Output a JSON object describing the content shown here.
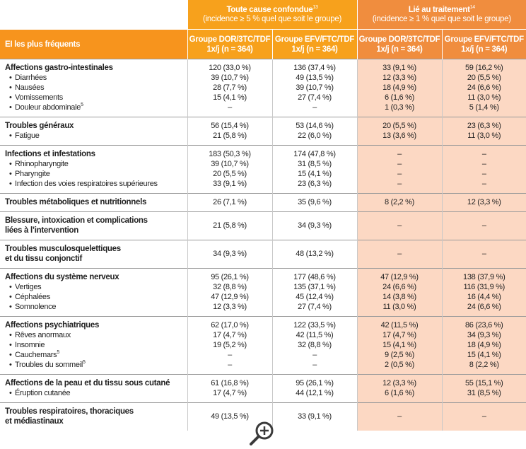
{
  "header": {
    "groups": [
      {
        "title": "Toute cause confondue",
        "sup": "13",
        "subtitle": "(incidence ≥ 5 % quel que soit le groupe)"
      },
      {
        "title": "Lié au traitement",
        "sup": "14",
        "subtitle": "(incidence ≥ 1 % quel que soit le groupe)"
      }
    ],
    "row_label": "EI les plus fréquents",
    "columns": [
      {
        "line1": "Groupe DOR/3TC/TDF",
        "line2": "1x/j (n = 364)"
      },
      {
        "line1": "Groupe EFV/FTC/TDF",
        "line2": "1x/j (n = 364)"
      },
      {
        "line1": "Groupe DOR/3TC/TDF",
        "line2": "1x/j (n = 364)"
      },
      {
        "line1": "Groupe EFV/FTC/TDF",
        "line2": "1x/j (n = 364)"
      }
    ]
  },
  "table": {
    "groups": [
      {
        "lines": [
          "Affections gastro-intestinales"
        ],
        "values": [
          "120 (33,0 %)",
          "136 (37,4 %)",
          "33 (9,1 %)",
          "59 (16,2 %)"
        ],
        "items": [
          {
            "name": "Diarrhées",
            "values": [
              "39 (10,7 %)",
              "49 (13,5 %)",
              "12 (3,3 %)",
              "20 (5,5 %)"
            ]
          },
          {
            "name": "Nausées",
            "values": [
              "28 (7,7 %)",
              "39 (10,7 %)",
              "18 (4,9 %)",
              "24 (6,6 %)"
            ]
          },
          {
            "name": "Vomissements",
            "values": [
              "15 (4,1 %)",
              "27 (7,4 %)",
              "6 (1,6 %)",
              "11 (3,0 %)"
            ]
          },
          {
            "name": "Douleur abdominale",
            "sup": "5",
            "values": [
              "–",
              "–",
              "1 (0,3 %)",
              "5 (1,4 %)"
            ]
          }
        ]
      },
      {
        "lines": [
          "Troubles généraux"
        ],
        "values": [
          "56 (15,4 %)",
          "53 (14,6 %)",
          "20 (5,5 %)",
          "23 (6,3 %)"
        ],
        "items": [
          {
            "name": "Fatigue",
            "values": [
              "21 (5,8 %)",
              "22 (6,0 %)",
              "13 (3,6 %)",
              "11 (3,0 %)"
            ]
          }
        ]
      },
      {
        "lines": [
          "Infections et infestations"
        ],
        "values": [
          "183 (50,3 %)",
          "174 (47,8 %)",
          "–",
          "–"
        ],
        "items": [
          {
            "name": "Rhinopharyngite",
            "values": [
              "39 (10,7 %)",
              "31 (8,5 %)",
              "–",
              "–"
            ]
          },
          {
            "name": "Pharyngite",
            "values": [
              "20 (5,5 %)",
              "15 (4,1 %)",
              "–",
              "–"
            ]
          },
          {
            "name": "Infection des voies respiratoires supérieures",
            "values": [
              "33 (9,1 %)",
              "23 (6,3 %)",
              "–",
              "–"
            ]
          }
        ]
      },
      {
        "lines": [
          "Troubles métaboliques et nutritionnels"
        ],
        "values": [
          "26 (7,1 %)",
          "35 (9,6 %)",
          "8 (2,2 %)",
          "12 (3,3 %)"
        ],
        "items": []
      },
      {
        "lines": [
          "Blessure, intoxication et complications",
          "liées à l’intervention"
        ],
        "values": [
          "21 (5,8 %)",
          "34 (9,3 %)",
          "–",
          "–"
        ],
        "items": []
      },
      {
        "lines": [
          "Troubles musculosquelettiques",
          "et du tissu conjonctif"
        ],
        "values": [
          "34 (9,3 %)",
          "48 (13,2 %)",
          "–",
          "–"
        ],
        "items": []
      },
      {
        "lines": [
          "Affections du système nerveux"
        ],
        "values": [
          "95 (26,1 %)",
          "177 (48,6 %)",
          "47 (12,9 %)",
          "138 (37,9 %)"
        ],
        "items": [
          {
            "name": "Vertiges",
            "values": [
              "32 (8,8 %)",
              "135 (37,1 %)",
              "24 (6,6 %)",
              "116 (31,9 %)"
            ]
          },
          {
            "name": "Céphalées",
            "values": [
              "47 (12,9 %)",
              "45 (12,4 %)",
              "14 (3,8 %)",
              "16 (4,4 %)"
            ]
          },
          {
            "name": "Somnolence",
            "values": [
              "12 (3,3 %)",
              "27 (7,4 %)",
              "11 (3,0 %)",
              "24 (6,6 %)"
            ]
          }
        ]
      },
      {
        "lines": [
          "Affections psychiatriques"
        ],
        "values": [
          "62 (17,0 %)",
          "122 (33,5 %)",
          "42 (11,5 %)",
          "86 (23,6 %)"
        ],
        "items": [
          {
            "name": "Rêves anormaux",
            "values": [
              "17 (4,7 %)",
              "42 (11,5 %)",
              "17 (4,7 %)",
              "34 (9,3 %)"
            ]
          },
          {
            "name": "Insomnie",
            "values": [
              "19 (5,2 %)",
              "32 (8,8 %)",
              "15 (4,1 %)",
              "18 (4,9 %)"
            ]
          },
          {
            "name": "Cauchemars",
            "sup": "5",
            "values": [
              "–",
              "–",
              "9 (2,5 %)",
              "15 (4,1 %)"
            ]
          },
          {
            "name": "Troubles du sommeil",
            "sup": "5",
            "values": [
              "–",
              "–",
              "2 (0,5 %)",
              "8 (2,2 %)"
            ]
          }
        ]
      },
      {
        "lines": [
          "Affections de la peau et du tissu sous cutané"
        ],
        "values": [
          "61 (16,8 %)",
          "95 (26,1 %)",
          "12 (3,3 %)",
          "55 (15,1 %)"
        ],
        "items": [
          {
            "name": "Éruption cutanée",
            "values": [
              "17 (4,7 %)",
              "44 (12,1 %)",
              "6 (1,6 %)",
              "31 (8,5 %)"
            ]
          }
        ]
      },
      {
        "lines": [
          "Troubles respiratoires, thoraciques",
          "et médiastinaux"
        ],
        "values": [
          "49 (13,5 %)",
          "33 (9,1 %)",
          "–",
          "–"
        ],
        "items": []
      }
    ]
  }
}
